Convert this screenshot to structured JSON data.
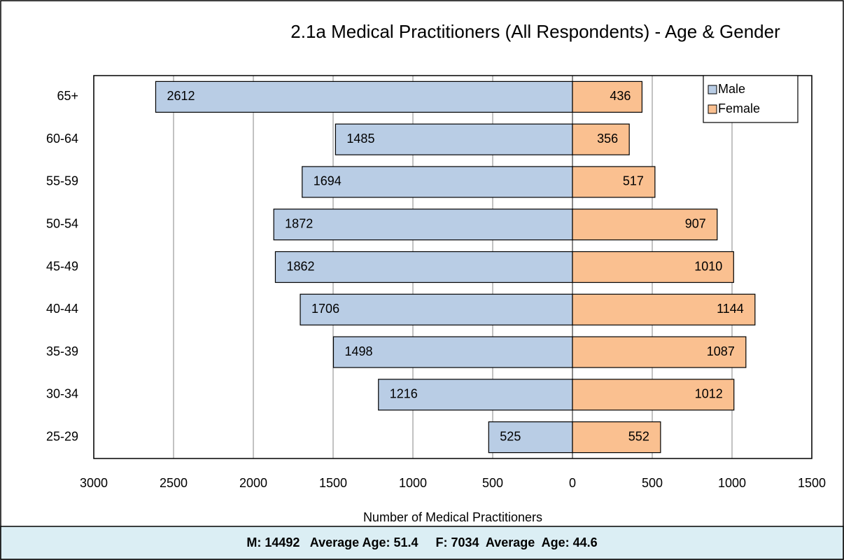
{
  "chart_data": {
    "type": "bar",
    "orientation": "horizontal",
    "stacked": false,
    "title": "2.1a Medical Practitioners (All Respondents) - Age & Gender",
    "xlabel": "Number of Medical Practitioners",
    "categories": [
      "65+",
      "60-64",
      "55-59",
      "50-54",
      "45-49",
      "40-44",
      "35-39",
      "30-34",
      "25-29"
    ],
    "series": [
      {
        "name": "Male",
        "color": "#b9cde5",
        "values": [
          -2612,
          -1485,
          -1694,
          -1872,
          -1862,
          -1706,
          -1498,
          -1216,
          -525
        ],
        "value_labels": [
          "2612",
          "1485",
          "1694",
          "1872",
          "1862",
          "1706",
          "1498",
          "1216",
          "525"
        ]
      },
      {
        "name": "Female",
        "color": "#fac090",
        "values": [
          436,
          356,
          517,
          907,
          1010,
          1144,
          1087,
          1012,
          552
        ]
      }
    ],
    "xlim": [
      -3000,
      1500
    ],
    "xticks": [
      {
        "value": -3000,
        "label": "3000"
      },
      {
        "value": -2500,
        "label": "2500"
      },
      {
        "value": -2000,
        "label": "2000"
      },
      {
        "value": -1500,
        "label": "1500"
      },
      {
        "value": -1000,
        "label": "1000"
      },
      {
        "value": -500,
        "label": "500"
      },
      0,
      500,
      1000,
      1500
    ],
    "grid": true,
    "legend": "top-right"
  },
  "footer": "M: 14492   Average Age: 51.4     F: 7034  Average  Age: 44.6"
}
